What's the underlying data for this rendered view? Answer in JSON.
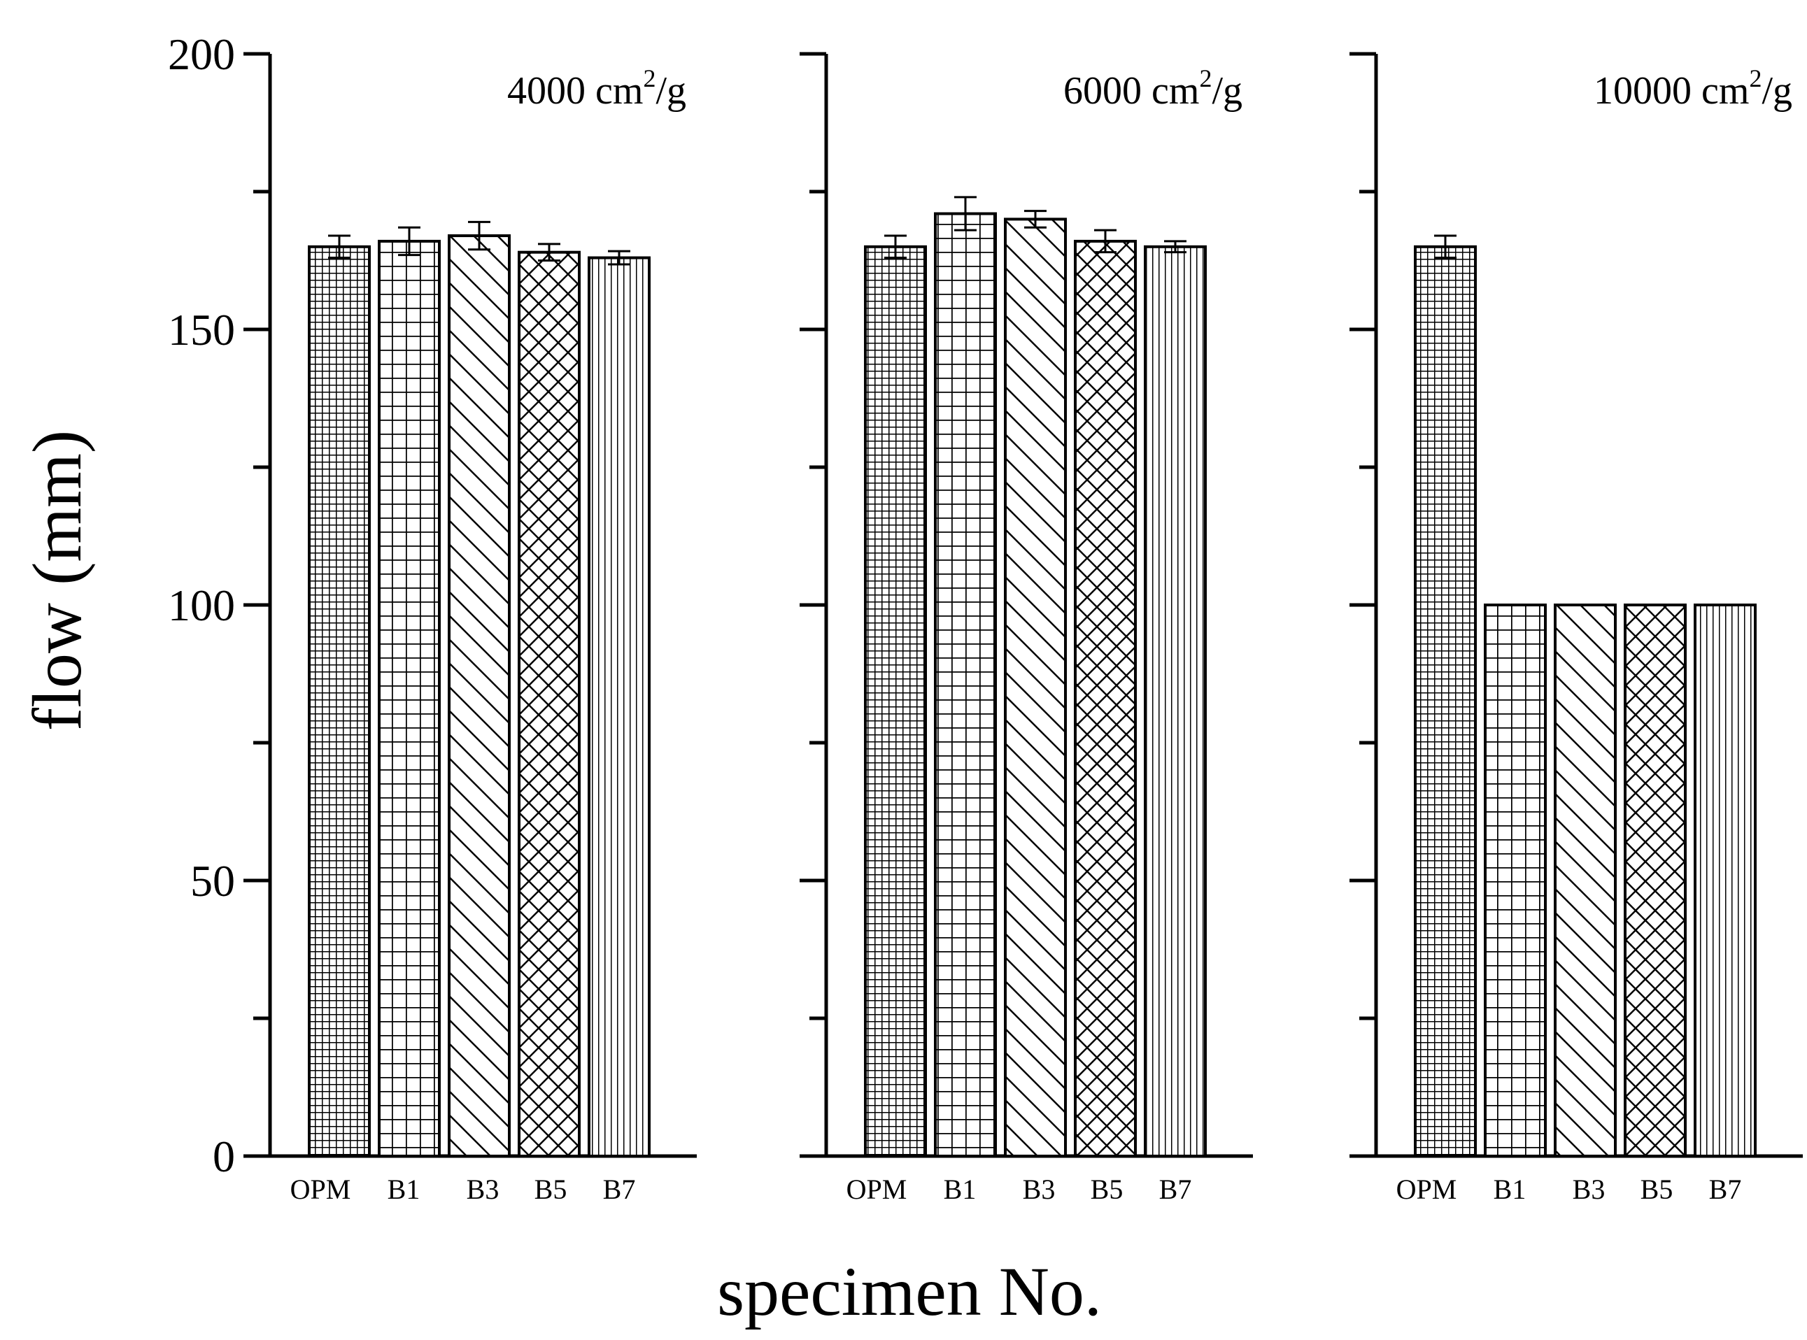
{
  "chart_data": {
    "type": "bar",
    "ylabel": "flow (mm)",
    "xlabel": "specimen No.",
    "ylim": [
      0,
      200
    ],
    "yticks": [
      "0",
      "50",
      "100",
      "150",
      "200"
    ],
    "categories": [
      "OPM",
      "B1",
      "B3",
      "B5",
      "B7"
    ],
    "panels": [
      {
        "label_main": "4000 cm",
        "label_sup": "2",
        "label_tail": "/g",
        "values": [
          165,
          166,
          167,
          164,
          163
        ],
        "errors": [
          2,
          2.5,
          2.5,
          1.5,
          1.2
        ]
      },
      {
        "label_main": "6000 cm",
        "label_sup": "2",
        "label_tail": "/g",
        "values": [
          165,
          171,
          170,
          166,
          165
        ],
        "errors": [
          2,
          3,
          1.5,
          2,
          1
        ]
      },
      {
        "label_main": "10000 cm",
        "label_sup": "2",
        "label_tail": "/g",
        "values": [
          165,
          100,
          100,
          100,
          100
        ],
        "errors": [
          2,
          0,
          0,
          0,
          0
        ]
      }
    ]
  }
}
